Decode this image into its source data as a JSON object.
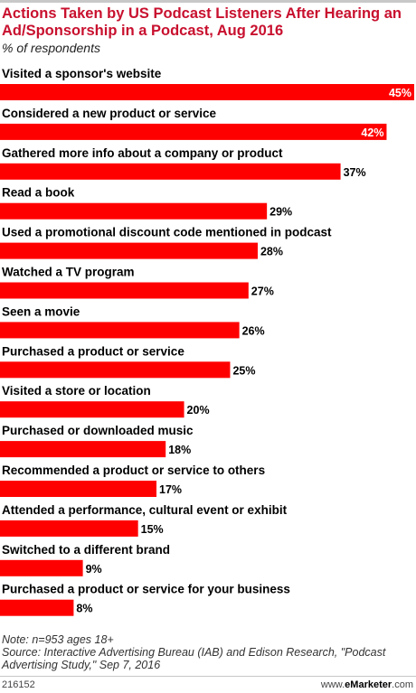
{
  "chart_data": {
    "type": "bar",
    "title": "Actions Taken by US Podcast Listeners After Hearing an Ad/Sponsorship in a Podcast, Aug 2016",
    "subtitle": "% of respondents",
    "categories": [
      "Visited a sponsor's website",
      "Considered a new product or service",
      "Gathered more info about a company or product",
      "Read a book",
      "Used a promotional discount code mentioned in podcast",
      "Watched a TV program",
      "Seen a movie",
      "Purchased a product or service",
      "Visited a store or location",
      "Purchased or downloaded music",
      "Recommended a product or service to others",
      "Attended a performance, cultural event or exhibit",
      "Switched to a different brand",
      "Purchased a product or service for your business"
    ],
    "values": [
      45,
      42,
      37,
      29,
      28,
      27,
      26,
      25,
      20,
      18,
      17,
      15,
      9,
      8
    ],
    "value_labels": [
      "45%",
      "42%",
      "37%",
      "29%",
      "28%",
      "27%",
      "26%",
      "25%",
      "20%",
      "18%",
      "17%",
      "15%",
      "9%",
      "8%"
    ],
    "xlim": [
      0,
      45
    ],
    "grid": false,
    "legend": "none",
    "bar_color": "#ff0000"
  },
  "footnote": {
    "note": "Note: n=953 ages 18+",
    "source": "Source: Interactive Advertising Bureau (IAB) and Edison Research, \"Podcast Advertising Study,\" Sep 7, 2016"
  },
  "footer": {
    "chart_id": "216152",
    "site_prefix": "www.",
    "site_brand": "eMarketer",
    "site_suffix": ".com"
  }
}
